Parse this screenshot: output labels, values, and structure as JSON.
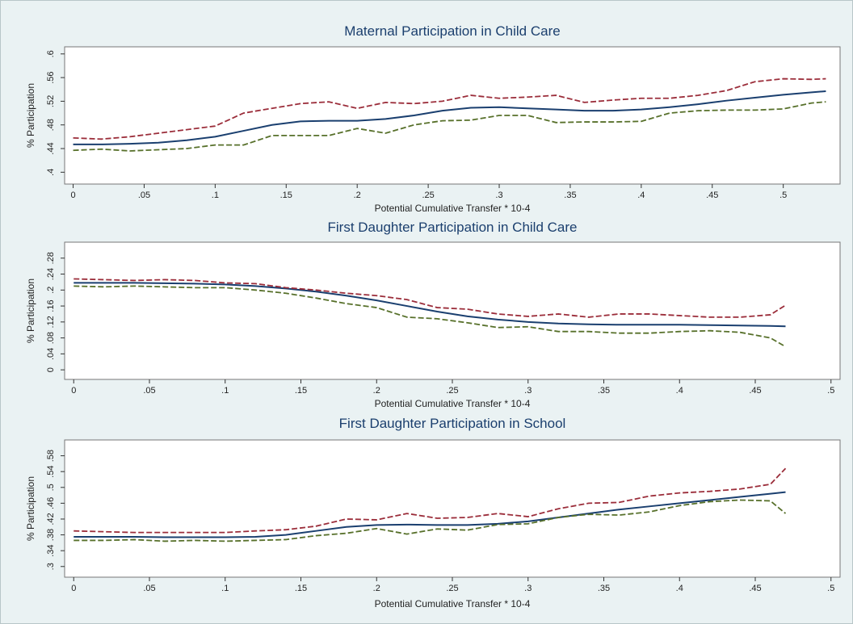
{
  "chart_data": [
    {
      "type": "line",
      "title": "Maternal Participation in Child Care",
      "x_label": "Potential Cumulative Transfer * 10-4",
      "y_label": "% Participation",
      "x": [
        0,
        0.02,
        0.04,
        0.06,
        0.08,
        0.1,
        0.12,
        0.14,
        0.16,
        0.18,
        0.2,
        0.22,
        0.24,
        0.26,
        0.28,
        0.3,
        0.32,
        0.34,
        0.36,
        0.38,
        0.4,
        0.42,
        0.44,
        0.46,
        0.48,
        0.5,
        0.52,
        0.53
      ],
      "series": [
        {
          "color": "#1a3f6f",
          "line_style": "solid",
          "values": [
            0.447,
            0.447,
            0.448,
            0.45,
            0.454,
            0.46,
            0.47,
            0.48,
            0.486,
            0.487,
            0.487,
            0.49,
            0.496,
            0.504,
            0.509,
            0.51,
            0.508,
            0.506,
            0.504,
            0.504,
            0.506,
            0.51,
            0.515,
            0.521,
            0.526,
            0.531,
            0.535,
            0.537
          ]
        },
        {
          "color": "#9b2d3a",
          "line_style": "dashed",
          "values": [
            0.458,
            0.456,
            0.46,
            0.466,
            0.472,
            0.478,
            0.5,
            0.508,
            0.516,
            0.519,
            0.508,
            0.518,
            0.516,
            0.52,
            0.53,
            0.525,
            0.527,
            0.53,
            0.518,
            0.522,
            0.525,
            0.525,
            0.53,
            0.538,
            0.553,
            0.558,
            0.557,
            0.558
          ]
        },
        {
          "color": "#57702a",
          "line_style": "dashed",
          "values": [
            0.437,
            0.439,
            0.436,
            0.438,
            0.44,
            0.446,
            0.446,
            0.462,
            0.462,
            0.462,
            0.474,
            0.466,
            0.48,
            0.487,
            0.488,
            0.496,
            0.496,
            0.484,
            0.485,
            0.485,
            0.486,
            0.5,
            0.504,
            0.505,
            0.505,
            0.507,
            0.517,
            0.519
          ]
        }
      ],
      "xlim": [
        -0.006,
        0.54
      ],
      "xticks": [
        0,
        {
          "value": 0.05,
          "label": ".05"
        },
        {
          "value": 0.1,
          "label": ".1"
        },
        {
          "value": 0.15,
          "label": ".15"
        },
        {
          "value": 0.2,
          "label": ".2"
        },
        {
          "value": 0.25,
          "label": ".25"
        },
        {
          "value": 0.3,
          "label": ".3"
        },
        {
          "value": 0.35,
          "label": ".35"
        },
        {
          "value": 0.4,
          "label": ".4"
        },
        {
          "value": 0.45,
          "label": ".45"
        },
        {
          "value": 0.5,
          "label": ".5"
        }
      ],
      "ylim": [
        0.38,
        0.612
      ],
      "yticks": [
        {
          "value": 0.4,
          "label": ".4"
        },
        {
          "value": 0.44,
          "label": ".44"
        },
        {
          "value": 0.48,
          "label": ".48"
        },
        {
          "value": 0.52,
          "label": ".52"
        },
        {
          "value": 0.56,
          "label": ".56"
        },
        {
          "value": 0.6,
          "label": ".6"
        }
      ],
      "grid": false
    },
    {
      "type": "line",
      "title": "First Daughter Participation in Child Care",
      "x_label": "Potential Cumulative Transfer * 10-4",
      "y_label": "% Participation",
      "x": [
        0,
        0.02,
        0.04,
        0.06,
        0.08,
        0.1,
        0.12,
        0.14,
        0.16,
        0.18,
        0.2,
        0.22,
        0.24,
        0.26,
        0.28,
        0.3,
        0.32,
        0.34,
        0.36,
        0.38,
        0.4,
        0.42,
        0.44,
        0.46,
        0.47
      ],
      "series": [
        {
          "color": "#1a3f6f",
          "line_style": "solid",
          "values": [
            0.218,
            0.218,
            0.218,
            0.217,
            0.216,
            0.214,
            0.21,
            0.204,
            0.196,
            0.186,
            0.174,
            0.16,
            0.146,
            0.134,
            0.126,
            0.12,
            0.116,
            0.114,
            0.113,
            0.113,
            0.113,
            0.112,
            0.111,
            0.11,
            0.109
          ]
        },
        {
          "color": "#9b2d3a",
          "line_style": "dashed",
          "values": [
            0.228,
            0.226,
            0.224,
            0.226,
            0.224,
            0.218,
            0.216,
            0.206,
            0.2,
            0.192,
            0.186,
            0.176,
            0.156,
            0.152,
            0.14,
            0.134,
            0.14,
            0.132,
            0.14,
            0.14,
            0.136,
            0.132,
            0.132,
            0.138,
            0.162
          ]
        },
        {
          "color": "#57702a",
          "line_style": "dashed",
          "values": [
            0.21,
            0.208,
            0.21,
            0.208,
            0.206,
            0.206,
            0.2,
            0.192,
            0.18,
            0.166,
            0.156,
            0.132,
            0.128,
            0.118,
            0.106,
            0.108,
            0.096,
            0.096,
            0.092,
            0.092,
            0.096,
            0.098,
            0.094,
            0.08,
            0.058
          ]
        }
      ],
      "xlim": [
        -0.006,
        0.506
      ],
      "xticks": [
        0,
        {
          "value": 0.05,
          "label": ".05"
        },
        {
          "value": 0.1,
          "label": ".1"
        },
        {
          "value": 0.15,
          "label": ".15"
        },
        {
          "value": 0.2,
          "label": ".2"
        },
        {
          "value": 0.25,
          "label": ".25"
        },
        {
          "value": 0.3,
          "label": ".3"
        },
        {
          "value": 0.35,
          "label": ".35"
        },
        {
          "value": 0.4,
          "label": ".4"
        },
        {
          "value": 0.45,
          "label": ".45"
        },
        {
          "value": 0.5,
          "label": ".5"
        }
      ],
      "ylim": [
        -0.024,
        0.32
      ],
      "yticks": [
        0,
        {
          "value": 0.04,
          "label": ".04"
        },
        {
          "value": 0.08,
          "label": ".08"
        },
        {
          "value": 0.12,
          "label": ".12"
        },
        {
          "value": 0.16,
          "label": ".16"
        },
        {
          "value": 0.2,
          "label": ".2"
        },
        {
          "value": 0.24,
          "label": ".24"
        },
        {
          "value": 0.28,
          "label": ".28"
        }
      ],
      "grid": false
    },
    {
      "type": "line",
      "title": "First Daughter Participation in School",
      "x_label": "Potential Cumulative Transfer * 10-4",
      "y_label": "% Participation",
      "x": [
        0,
        0.02,
        0.04,
        0.06,
        0.08,
        0.1,
        0.12,
        0.14,
        0.16,
        0.18,
        0.2,
        0.22,
        0.24,
        0.26,
        0.28,
        0.3,
        0.32,
        0.34,
        0.36,
        0.38,
        0.4,
        0.42,
        0.44,
        0.46,
        0.47
      ],
      "series": [
        {
          "color": "#1a3f6f",
          "line_style": "solid",
          "values": [
            0.375,
            0.375,
            0.375,
            0.374,
            0.374,
            0.374,
            0.375,
            0.38,
            0.39,
            0.4,
            0.405,
            0.406,
            0.405,
            0.405,
            0.408,
            0.414,
            0.424,
            0.434,
            0.444,
            0.452,
            0.46,
            0.468,
            0.476,
            0.484,
            0.488
          ]
        },
        {
          "color": "#9b2d3a",
          "line_style": "dashed",
          "values": [
            0.39,
            0.388,
            0.386,
            0.386,
            0.386,
            0.386,
            0.39,
            0.393,
            0.402,
            0.42,
            0.418,
            0.434,
            0.422,
            0.424,
            0.434,
            0.426,
            0.446,
            0.46,
            0.462,
            0.478,
            0.486,
            0.49,
            0.496,
            0.508,
            0.548
          ]
        },
        {
          "color": "#57702a",
          "line_style": "dashed",
          "values": [
            0.366,
            0.366,
            0.368,
            0.364,
            0.366,
            0.364,
            0.366,
            0.368,
            0.378,
            0.384,
            0.396,
            0.382,
            0.395,
            0.392,
            0.406,
            0.408,
            0.424,
            0.432,
            0.43,
            0.438,
            0.454,
            0.464,
            0.468,
            0.466,
            0.434
          ]
        }
      ],
      "xlim": [
        -0.006,
        0.506
      ],
      "xticks": [
        0,
        {
          "value": 0.05,
          "label": ".05"
        },
        {
          "value": 0.1,
          "label": ".1"
        },
        {
          "value": 0.15,
          "label": ".15"
        },
        {
          "value": 0.2,
          "label": ".2"
        },
        {
          "value": 0.25,
          "label": ".25"
        },
        {
          "value": 0.3,
          "label": ".3"
        },
        {
          "value": 0.35,
          "label": ".35"
        },
        {
          "value": 0.4,
          "label": ".4"
        },
        {
          "value": 0.45,
          "label": ".45"
        },
        {
          "value": 0.5,
          "label": ".5"
        }
      ],
      "ylim": [
        0.273,
        0.62
      ],
      "yticks": [
        {
          "value": 0.3,
          "label": ".3"
        },
        {
          "value": 0.34,
          "label": ".34"
        },
        {
          "value": 0.38,
          "label": ".38"
        },
        {
          "value": 0.42,
          "label": ".42"
        },
        {
          "value": 0.46,
          "label": ".46"
        },
        {
          "value": 0.5,
          "label": ".5"
        },
        {
          "value": 0.54,
          "label": ".54"
        },
        {
          "value": 0.58,
          "label": ".58"
        }
      ],
      "grid": false
    }
  ]
}
